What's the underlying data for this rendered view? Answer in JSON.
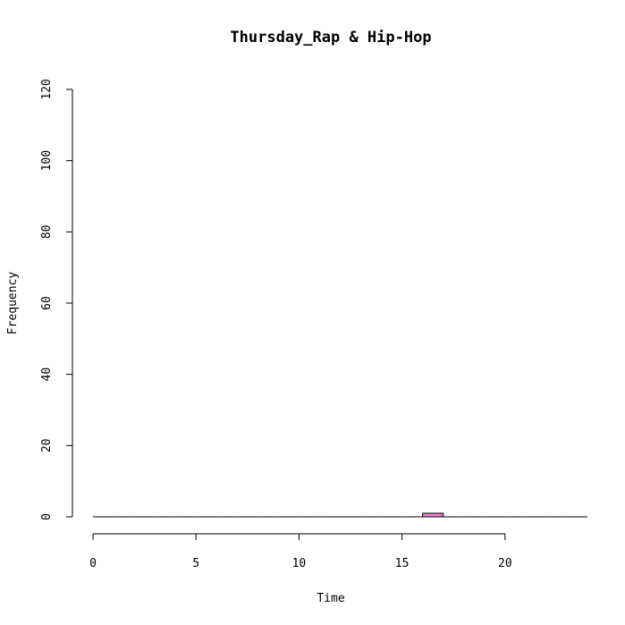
{
  "chart_data": {
    "type": "bar",
    "title": "Thursday_Rap & Hip-Hop",
    "xlabel": "Time",
    "ylabel": "Frequency",
    "xlim": [
      0,
      24
    ],
    "ylim": [
      0,
      120
    ],
    "x_ticks": [
      0,
      5,
      10,
      15,
      20
    ],
    "y_ticks": [
      0,
      20,
      40,
      60,
      80,
      100,
      120
    ],
    "bins": [
      {
        "x0": 0,
        "x1": 1,
        "value": 0
      },
      {
        "x0": 1,
        "x1": 2,
        "value": 0
      },
      {
        "x0": 2,
        "x1": 3,
        "value": 0
      },
      {
        "x0": 3,
        "x1": 4,
        "value": 0
      },
      {
        "x0": 4,
        "x1": 5,
        "value": 0
      },
      {
        "x0": 5,
        "x1": 6,
        "value": 0
      },
      {
        "x0": 6,
        "x1": 7,
        "value": 0
      },
      {
        "x0": 7,
        "x1": 8,
        "value": 0
      },
      {
        "x0": 8,
        "x1": 9,
        "value": 0
      },
      {
        "x0": 9,
        "x1": 10,
        "value": 0
      },
      {
        "x0": 10,
        "x1": 11,
        "value": 0
      },
      {
        "x0": 11,
        "x1": 12,
        "value": 0
      },
      {
        "x0": 12,
        "x1": 13,
        "value": 0
      },
      {
        "x0": 13,
        "x1": 14,
        "value": 0
      },
      {
        "x0": 14,
        "x1": 15,
        "value": 0
      },
      {
        "x0": 15,
        "x1": 16,
        "value": 0
      },
      {
        "x0": 16,
        "x1": 17,
        "value": 1
      },
      {
        "x0": 17,
        "x1": 18,
        "value": 0
      },
      {
        "x0": 18,
        "x1": 19,
        "value": 0
      },
      {
        "x0": 19,
        "x1": 20,
        "value": 0
      },
      {
        "x0": 20,
        "x1": 21,
        "value": 0
      },
      {
        "x0": 21,
        "x1": 22,
        "value": 0
      },
      {
        "x0": 22,
        "x1": 23,
        "value": 0
      },
      {
        "x0": 23,
        "x1": 24,
        "value": 0
      }
    ],
    "bar_color": "#ee82c8",
    "grid": false
  }
}
